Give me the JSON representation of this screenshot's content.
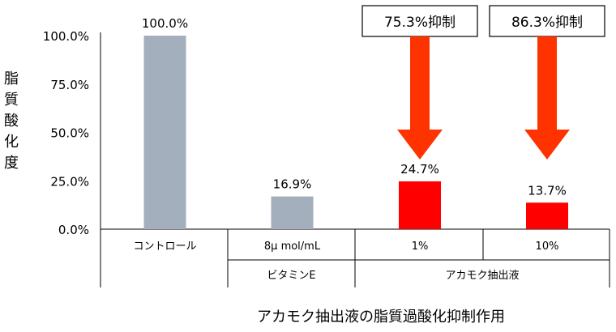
{
  "caption": "アカモク抽出液の脂質過酸化抑制作用",
  "chart_data": {
    "type": "bar",
    "ylabel": "脂質酸化度",
    "ylim": [
      0,
      100
    ],
    "yticks": [
      0,
      25,
      50,
      75,
      100
    ],
    "ytick_labels": [
      "0.0%",
      "25.0%",
      "50.0%",
      "75.0%",
      "100.0%"
    ],
    "grid": false,
    "categories": [
      "コントロール",
      "8μ mol/mL",
      "1%",
      "10%"
    ],
    "values": [
      100.0,
      16.9,
      24.7,
      13.7
    ],
    "data_labels": [
      "100.0%",
      "16.9%",
      "24.7%",
      "13.7%"
    ],
    "bar_colors": [
      "#a3afbd",
      "#a3afbd",
      "#ff0000",
      "#ff0000"
    ],
    "groups": [
      {
        "label": "",
        "categories": [
          0
        ]
      },
      {
        "label": "ビタミンE",
        "categories": [
          1
        ]
      },
      {
        "label": "アカモク抽出液",
        "categories": [
          2,
          3
        ]
      }
    ],
    "annotations": [
      {
        "category": 2,
        "text": "75.3%抑制",
        "arrow_color": "#ff3300"
      },
      {
        "category": 3,
        "text": "86.3%抑制",
        "arrow_color": "#ff3300"
      }
    ]
  }
}
